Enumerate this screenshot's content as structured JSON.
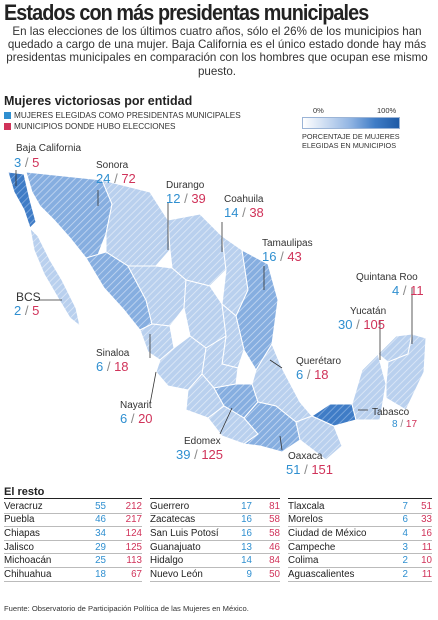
{
  "title": "Estados con más presidentas municipales",
  "intro": "En las elecciones de los últimos cuatro años, sólo el 26% de los municipios han quedado a cargo de una mujer. Baja California es el único estado donde hay más presidentas municipales en comparación con los hombres que ocupan ese mismo puesto.",
  "section_title": "Mujeres victoriosas por entidad",
  "legend": {
    "women_label": "MUJERES ELEGIDAS COMO PRESIDENTAS MUNICIPALES",
    "total_label": "MUNICIPIOS DONDE HUBO ELECCIONES",
    "women_color": "#2f8fd0",
    "total_color": "#d0335a"
  },
  "scale": {
    "min_label": "0%",
    "max_label": "100%",
    "caption": "PORCENTAJE DE MUJERES ELEGIDAS EN MUNICIPIOS"
  },
  "states": [
    {
      "name": "Baja California",
      "women": "3",
      "total": "5"
    },
    {
      "name": "Sonora",
      "women": "24",
      "total": "72"
    },
    {
      "name": "Durango",
      "women": "12",
      "total": "39"
    },
    {
      "name": "Coahuila",
      "women": "14",
      "total": "38"
    },
    {
      "name": "Tamaulipas",
      "women": "16",
      "total": "43"
    },
    {
      "name": "Quintana Roo",
      "women": "4",
      "total": "11"
    },
    {
      "name": "BCS",
      "women": "2",
      "total": "5"
    },
    {
      "name": "Yucatán",
      "women": "30",
      "total": "105"
    },
    {
      "name": "Sinaloa",
      "women": "6",
      "total": "18"
    },
    {
      "name": "Querétaro",
      "women": "6",
      "total": "18"
    },
    {
      "name": "Nayarit",
      "women": "6",
      "total": "20"
    },
    {
      "name": "Tabasco",
      "women": "8",
      "total": "17"
    },
    {
      "name": "Edomex",
      "women": "39",
      "total": "125"
    },
    {
      "name": "Oaxaca",
      "women": "51",
      "total": "151"
    }
  ],
  "rest_title": "El resto",
  "rest": [
    [
      {
        "name": "Veracruz",
        "women": "55",
        "total": "212"
      },
      {
        "name": "Puebla",
        "women": "46",
        "total": "217"
      },
      {
        "name": "Chiapas",
        "women": "34",
        "total": "124"
      },
      {
        "name": "Jalisco",
        "women": "29",
        "total": "125"
      },
      {
        "name": "Michoacán",
        "women": "25",
        "total": "113"
      },
      {
        "name": "Chihuahua",
        "women": "18",
        "total": "67"
      }
    ],
    [
      {
        "name": "Guerrero",
        "women": "17",
        "total": "81"
      },
      {
        "name": "Zacatecas",
        "women": "16",
        "total": "58"
      },
      {
        "name": "San Luis Potosí",
        "women": "16",
        "total": "58"
      },
      {
        "name": "Guanajuato",
        "women": "13",
        "total": "46"
      },
      {
        "name": "Hidalgo",
        "women": "14",
        "total": "84"
      },
      {
        "name": "Nuevo León",
        "women": "9",
        "total": "50"
      }
    ],
    [
      {
        "name": "Tlaxcala",
        "women": "7",
        "total": "51"
      },
      {
        "name": "Morelos",
        "women": "6",
        "total": "33"
      },
      {
        "name": "Ciudad de México",
        "women": "4",
        "total": "16"
      },
      {
        "name": "Campeche",
        "women": "3",
        "total": "11"
      },
      {
        "name": "Colima",
        "women": "2",
        "total": "10"
      },
      {
        "name": "Aguascalientes",
        "women": "2",
        "total": "11"
      }
    ]
  ],
  "source": "Fuente: Observatorio de Participación Política de las Mujeres en México."
}
